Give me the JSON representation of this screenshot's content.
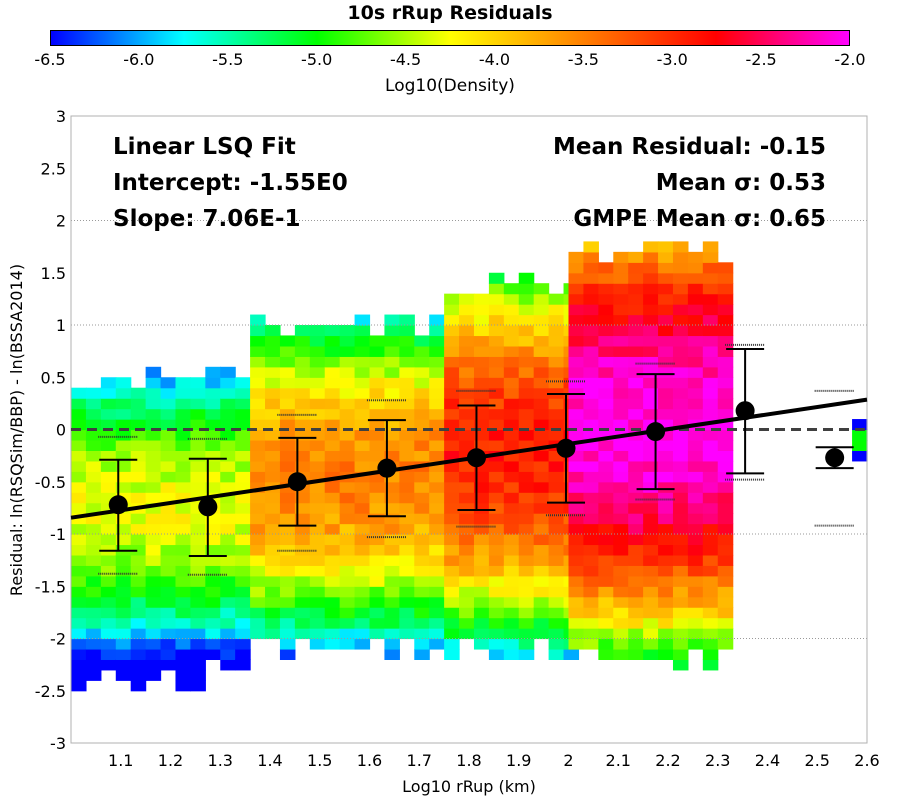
{
  "chart_data": {
    "type": "heatmap",
    "title": "10s rRup Residuals",
    "xlabel": "Log10 rRup (km)",
    "ylabel": "Residual: ln(RSQSim/BBP) - ln(BSSA2014)",
    "xlim": [
      1.0,
      2.6
    ],
    "ylim": [
      -3,
      3
    ],
    "xticks": [
      "1.1",
      "1.2",
      "1.3",
      "1.4",
      "1.5",
      "1.6",
      "1.7",
      "1.8",
      "1.9",
      "2",
      "2.1",
      "2.2",
      "2.3",
      "2.4",
      "2.5",
      "2.6"
    ],
    "yticks": [
      "3",
      "2.5",
      "2",
      "1.5",
      "1",
      "0.5",
      "0",
      "-0.5",
      "-1",
      "-1.5",
      "-2",
      "-2.5",
      "-3"
    ],
    "grid": "horizontal dotted at ±1, ±2",
    "colorbar": {
      "label": "Log10(Density)",
      "range": [
        -6.5,
        -2.0
      ],
      "ticks": [
        "-6.5",
        "-6.0",
        "-5.5",
        "-5.0",
        "-4.5",
        "-4.0",
        "-3.5",
        "-3.0",
        "-2.5",
        "-2.0"
      ],
      "colors": [
        "#0000ff",
        "#00ffff",
        "#00ff00",
        "#ffff00",
        "#ff8000",
        "#ff0000",
        "#ff00ff"
      ]
    },
    "annotations_left": [
      "Linear LSQ Fit",
      "Intercept: -1.55E0",
      "Slope: 7.06E-1"
    ],
    "annotations_right": [
      "Mean Residual: -0.15",
      "Mean σ: 0.53",
      "GMPE Mean σ: 0.65"
    ],
    "fit_line": {
      "intercept": -1.55,
      "slope": 0.706,
      "style": "solid black"
    },
    "zero_line": {
      "y": 0,
      "style": "dashed gray"
    },
    "binned_means": [
      {
        "x": 1.095,
        "mean": -0.72,
        "lo": -1.16,
        "hi": -0.29,
        "pctl_lo": -1.38,
        "pctl_hi": -0.07
      },
      {
        "x": 1.275,
        "mean": -0.74,
        "lo": -1.21,
        "hi": -0.28,
        "pctl_lo": -1.39,
        "pctl_hi": -0.09
      },
      {
        "x": 1.455,
        "mean": -0.5,
        "lo": -0.92,
        "hi": -0.08,
        "pctl_lo": -1.16,
        "pctl_hi": 0.14
      },
      {
        "x": 1.635,
        "mean": -0.37,
        "lo": -0.83,
        "hi": 0.09,
        "pctl_lo": -1.03,
        "pctl_hi": 0.28
      },
      {
        "x": 1.815,
        "mean": -0.27,
        "lo": -0.77,
        "hi": 0.23,
        "pctl_lo": -0.93,
        "pctl_hi": 0.37
      },
      {
        "x": 1.995,
        "mean": -0.18,
        "lo": -0.7,
        "hi": 0.34,
        "pctl_lo": -0.82,
        "pctl_hi": 0.46
      },
      {
        "x": 2.175,
        "mean": -0.02,
        "lo": -0.57,
        "hi": 0.53,
        "pctl_lo": -0.67,
        "pctl_hi": 0.63
      },
      {
        "x": 2.355,
        "mean": 0.18,
        "lo": -0.42,
        "hi": 0.77,
        "pctl_lo": -0.48,
        "pctl_hi": 0.81
      },
      {
        "x": 2.535,
        "mean": -0.27,
        "lo": -0.37,
        "hi": -0.17,
        "pctl_lo": -0.92,
        "pctl_hi": 0.37
      }
    ],
    "heatmap": {
      "bin_width_x": 0.03,
      "bin_height_y": 0.1,
      "description_columns": [
        {
          "x0": 1.0,
          "x1": 1.36,
          "ymin": -2.35,
          "ymax": 0.6,
          "peak": -4.3,
          "center": -0.8
        },
        {
          "x0": 1.36,
          "x1": 1.75,
          "ymin": -2.1,
          "ymax": 1.1,
          "peak": -3.5,
          "center": -0.5
        },
        {
          "x0": 1.75,
          "x1": 2.0,
          "ymin": -2.1,
          "ymax": 1.45,
          "peak": -2.9,
          "center": -0.25
        },
        {
          "x0": 2.0,
          "x1": 2.32,
          "ymin": -2.2,
          "ymax": 1.8,
          "peak": -2.05,
          "center": 0.0
        },
        {
          "x0": 2.57,
          "x1": 2.6,
          "ymin": -0.3,
          "ymax": 0.05,
          "peak": -5.0,
          "center": -0.15
        }
      ]
    }
  }
}
